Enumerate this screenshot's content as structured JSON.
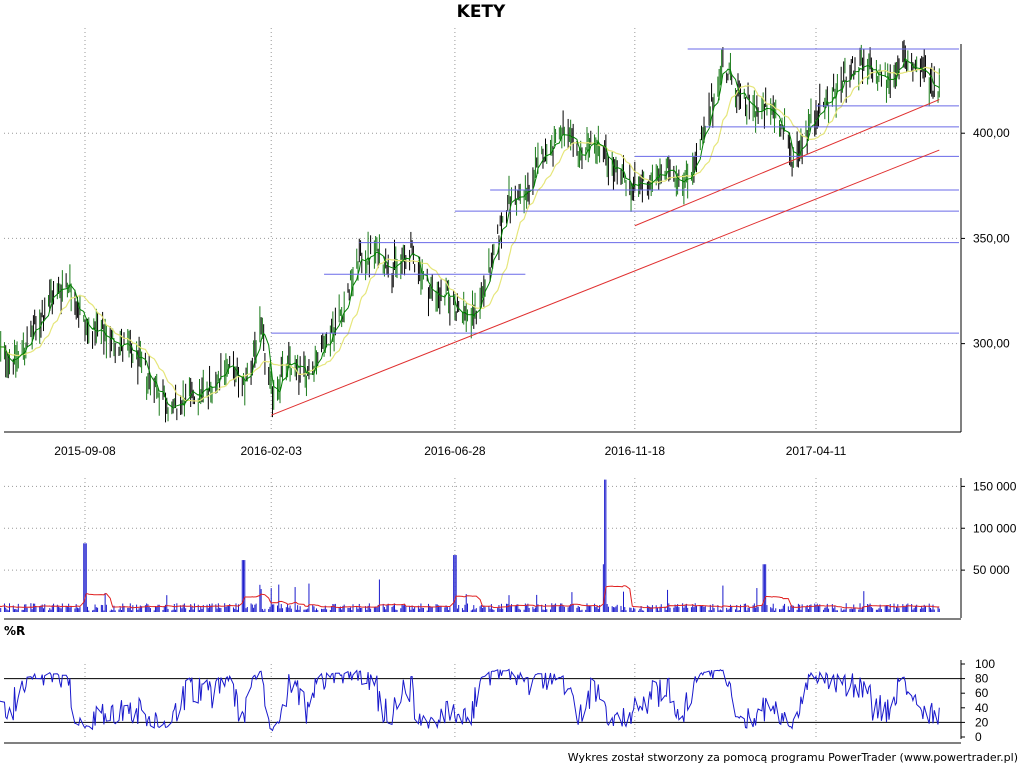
{
  "title": "KETY",
  "indicator_title": "%R",
  "footer": "Wykres został stworzony za pomocą programu PowerTrader (www.powertrader.pl)",
  "colors": {
    "candle": "#000000",
    "ma_fast": "#008000",
    "ma_slow": "#e6e67a",
    "support_lines": "#6a6ae8",
    "trend_lines": "#e03030",
    "volume_bars": "#1a1acc",
    "volume_avg": "#e02020",
    "williams": "#1a1acc",
    "grid": "#999999"
  },
  "chart_data": [
    {
      "type": "candlestick",
      "x_labels": [
        "2015-09-08",
        "2016-02-03",
        "2016-06-28",
        "2016-11-18",
        "2017-04-11"
      ],
      "y_ticks": [
        "300,00",
        "350,00",
        "400,00"
      ],
      "ylim": [
        258,
        450
      ],
      "price_path": [
        [
          "2015-07-01",
          297
        ],
        [
          "2015-07-15",
          292
        ],
        [
          "2015-07-29",
          305
        ],
        [
          "2015-08-12",
          322
        ],
        [
          "2015-08-26",
          330
        ],
        [
          "2015-09-08",
          308
        ],
        [
          "2015-09-22",
          304
        ],
        [
          "2015-10-06",
          300
        ],
        [
          "2015-10-20",
          292
        ],
        [
          "2015-11-03",
          280
        ],
        [
          "2015-11-17",
          268
        ],
        [
          "2015-12-01",
          275
        ],
        [
          "2015-12-15",
          278
        ],
        [
          "2015-12-29",
          290
        ],
        [
          "2016-01-12",
          280
        ],
        [
          "2016-01-26",
          306
        ],
        [
          "2016-02-03",
          276
        ],
        [
          "2016-02-17",
          290
        ],
        [
          "2016-03-02",
          285
        ],
        [
          "2016-03-16",
          300
        ],
        [
          "2016-03-30",
          315
        ],
        [
          "2016-04-13",
          340
        ],
        [
          "2016-04-27",
          343
        ],
        [
          "2016-05-11",
          336
        ],
        [
          "2016-05-25",
          343
        ],
        [
          "2016-06-08",
          325
        ],
        [
          "2016-06-22",
          322
        ],
        [
          "2016-06-28",
          318
        ],
        [
          "2016-07-12",
          312
        ],
        [
          "2016-07-26",
          335
        ],
        [
          "2016-08-09",
          368
        ],
        [
          "2016-08-23",
          370
        ],
        [
          "2016-09-06",
          390
        ],
        [
          "2016-09-20",
          400
        ],
        [
          "2016-10-04",
          390
        ],
        [
          "2016-10-18",
          396
        ],
        [
          "2016-11-01",
          382
        ],
        [
          "2016-11-18",
          374
        ],
        [
          "2016-12-02",
          378
        ],
        [
          "2016-12-16",
          382
        ],
        [
          "2016-12-30",
          378
        ],
        [
          "2017-01-13",
          400
        ],
        [
          "2017-01-27",
          434
        ],
        [
          "2017-02-10",
          416
        ],
        [
          "2017-02-24",
          410
        ],
        [
          "2017-03-10",
          410
        ],
        [
          "2017-03-24",
          388
        ],
        [
          "2017-04-11",
          410
        ],
        [
          "2017-04-25",
          418
        ],
        [
          "2017-05-09",
          430
        ],
        [
          "2017-05-23",
          430
        ],
        [
          "2017-06-06",
          425
        ],
        [
          "2017-06-20",
          434
        ],
        [
          "2017-07-04",
          430
        ],
        [
          "2017-07-18",
          420
        ]
      ],
      "horizontal_levels": [
        {
          "value": 305,
          "from": "2016-02-03"
        },
        {
          "value": 333,
          "from": "2016-03-16",
          "to": "2016-08-23"
        },
        {
          "value": 348,
          "from": "2016-04-13"
        },
        {
          "value": 363,
          "from": "2016-06-28"
        },
        {
          "value": 373,
          "from": "2016-07-26"
        },
        {
          "value": 389,
          "from": "2016-11-18"
        },
        {
          "value": 403,
          "from": "2017-01-13"
        },
        {
          "value": 413,
          "from": "2017-04-11"
        },
        {
          "value": 440,
          "from": "2016-12-30"
        }
      ],
      "trend_lines": [
        {
          "from": [
            "2016-02-03",
            266
          ],
          "to": [
            "2017-07-18",
            392
          ]
        },
        {
          "from": [
            "2016-11-18",
            356
          ],
          "to": [
            "2017-07-18",
            416
          ]
        }
      ]
    },
    {
      "type": "bar",
      "name": "volume",
      "y_ticks": [
        "50 000",
        "100 000",
        "150 000"
      ],
      "ylim": [
        0,
        160000
      ],
      "spikes": [
        [
          "2015-09-08",
          82000
        ],
        [
          "2016-01-12",
          62000
        ],
        [
          "2016-06-28",
          68000
        ],
        [
          "2016-10-25",
          158000
        ],
        [
          "2016-10-23",
          57000
        ],
        [
          "2017-03-01",
          57000
        ]
      ]
    },
    {
      "type": "line",
      "name": "%R",
      "y_ticks": [
        "0",
        "20",
        "40",
        "60",
        "80",
        "100"
      ],
      "ylim": [
        0,
        100
      ],
      "reference_levels": [
        20,
        80
      ]
    }
  ]
}
